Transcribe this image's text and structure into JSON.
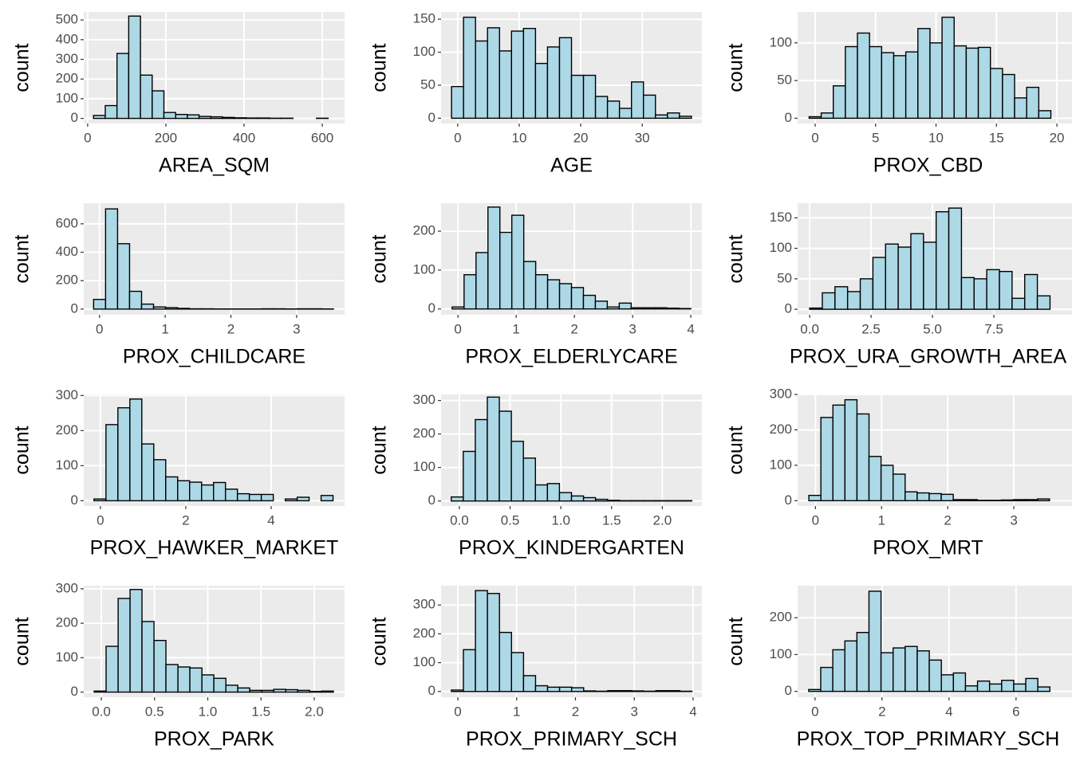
{
  "chart_data": [
    {
      "type": "histogram",
      "xlabel": "AREA_SQM",
      "ylabel": "count",
      "color": "#add8e6",
      "edge_color": "#000000",
      "grid": true,
      "bins": [
        15,
        45,
        75,
        105,
        135,
        165,
        195,
        225,
        255,
        285,
        315,
        345,
        375,
        405,
        435,
        465,
        495,
        525,
        555,
        585,
        615
      ],
      "counts": [
        15,
        65,
        330,
        520,
        220,
        140,
        30,
        20,
        18,
        10,
        8,
        5,
        3,
        2,
        2,
        1,
        1,
        0,
        0,
        1
      ],
      "xlim": [
        -10,
        657
      ],
      "ylim": [
        -26,
        541
      ],
      "xticks": [
        0,
        200,
        400,
        600
      ],
      "yticks": [
        0,
        100,
        200,
        300,
        400,
        500
      ]
    },
    {
      "type": "histogram",
      "xlabel": "AGE",
      "ylabel": "count",
      "color": "#add8e6",
      "edge_color": "#000000",
      "grid": true,
      "bins": [
        -1,
        0.95,
        2.9,
        4.85,
        6.8,
        8.75,
        10.7,
        12.65,
        14.6,
        16.55,
        18.5,
        20.45,
        22.4,
        24.35,
        26.3,
        28.25,
        30.2,
        32.15,
        34.1,
        36.05,
        38
      ],
      "counts": [
        48,
        153,
        117,
        137,
        102,
        132,
        136,
        83,
        108,
        122,
        65,
        65,
        33,
        26,
        15,
        55,
        35,
        5,
        8,
        3
      ],
      "xlim": [
        -2.7,
        39.7
      ],
      "ylim": [
        -8,
        161
      ],
      "xticks": [
        0,
        10,
        20,
        30
      ],
      "yticks": [
        0,
        50,
        100,
        150
      ]
    },
    {
      "type": "histogram",
      "xlabel": "PROX_CBD",
      "ylabel": "count",
      "color": "#add8e6",
      "edge_color": "#000000",
      "grid": true,
      "bins": [
        -0.5,
        0.5,
        1.5,
        2.5,
        3.5,
        4.5,
        5.5,
        6.5,
        7.5,
        8.5,
        9.5,
        10.5,
        11.5,
        12.5,
        13.5,
        14.5,
        15.5,
        16.5,
        17.5,
        18.5,
        19.5
      ],
      "counts": [
        2,
        7,
        43,
        95,
        113,
        95,
        87,
        83,
        88,
        119,
        100,
        134,
        96,
        93,
        94,
        66,
        58,
        27,
        41,
        10
      ],
      "xlim": [
        -1.45,
        21.25
      ],
      "ylim": [
        -7,
        141
      ],
      "xticks": [
        0,
        5,
        10,
        15,
        20
      ],
      "yticks": [
        0,
        50,
        100
      ]
    },
    {
      "type": "histogram",
      "xlabel": "PROX_CHILDCARE",
      "ylabel": "count",
      "color": "#add8e6",
      "edge_color": "#000000",
      "grid": true,
      "bins": [
        -0.09,
        0.0925,
        0.275,
        0.4575,
        0.64,
        0.8225,
        1.005,
        1.1875,
        1.37,
        1.5525,
        1.735,
        1.9175,
        2.1,
        2.2825,
        2.465,
        2.6475,
        2.83,
        3.0125,
        3.195,
        3.3775,
        3.56
      ],
      "counts": [
        68,
        705,
        460,
        125,
        35,
        15,
        10,
        5,
        2,
        2,
        1,
        1,
        1,
        1,
        2,
        2,
        1,
        2,
        2,
        1
      ],
      "xlim": [
        -0.24,
        3.73
      ],
      "ylim": [
        -40,
        745
      ],
      "xticks": [
        0,
        1,
        2,
        3
      ],
      "yticks": [
        0,
        200,
        400,
        600
      ]
    },
    {
      "type": "histogram",
      "xlabel": "PROX_ELDERLYCARE",
      "ylabel": "count",
      "color": "#add8e6",
      "edge_color": "#000000",
      "grid": true,
      "bins": [
        -0.1,
        0.105,
        0.31,
        0.515,
        0.72,
        0.925,
        1.13,
        1.335,
        1.54,
        1.745,
        1.95,
        2.155,
        2.36,
        2.565,
        2.77,
        2.975,
        3.18,
        3.385,
        3.59,
        3.795,
        4.0
      ],
      "counts": [
        5,
        88,
        145,
        262,
        197,
        241,
        122,
        88,
        75,
        65,
        55,
        35,
        20,
        5,
        15,
        3,
        3,
        3,
        2,
        1
      ],
      "xlim": [
        -0.29,
        4.19
      ],
      "ylim": [
        -15,
        272
      ],
      "xticks": [
        0,
        1,
        2,
        3,
        4
      ],
      "yticks": [
        0,
        100,
        200
      ]
    },
    {
      "type": "histogram",
      "xlabel": "PROX_URA_GROWTH_AREA",
      "ylabel": "count",
      "color": "#add8e6",
      "edge_color": "#000000",
      "grid": true,
      "bins": [
        0,
        0.515,
        1.03,
        1.545,
        2.06,
        2.575,
        3.09,
        3.605,
        4.12,
        4.635,
        5.15,
        5.665,
        6.18,
        6.695,
        7.21,
        7.725,
        8.24,
        8.755,
        9.27,
        9.785
      ],
      "counts": [
        2,
        27,
        37,
        29,
        50,
        85,
        107,
        102,
        124,
        110,
        160,
        166,
        52,
        50,
        65,
        62,
        18,
        57,
        22
      ],
      "xlim": [
        -0.49,
        10.68
      ],
      "ylim": [
        -9,
        174
      ],
      "xticks": [
        {
          "value": 0,
          "label": "0.0"
        },
        {
          "value": 2.5,
          "label": "2.5"
        },
        {
          "value": 5,
          "label": "5.0"
        },
        {
          "value": 7.5,
          "label": "7.5"
        }
      ],
      "yticks": [
        0,
        50,
        100,
        150
      ]
    },
    {
      "type": "histogram",
      "xlabel": "PROX_HAWKER_MARKET",
      "ylabel": "count",
      "color": "#add8e6",
      "edge_color": "#000000",
      "grid": true,
      "bins": [
        -0.15,
        0.13,
        0.41,
        0.69,
        0.97,
        1.25,
        1.53,
        1.81,
        2.09,
        2.37,
        2.65,
        2.93,
        3.21,
        3.49,
        3.77,
        4.05,
        4.33,
        4.61,
        4.89,
        5.17,
        5.45
      ],
      "counts": [
        5,
        217,
        265,
        290,
        162,
        117,
        68,
        57,
        53,
        45,
        52,
        33,
        20,
        18,
        18,
        0,
        5,
        10,
        0,
        15
      ],
      "xlim": [
        -0.39,
        5.72
      ],
      "ylim": [
        -15,
        303
      ],
      "xticks": [
        0,
        2,
        4
      ],
      "yticks": [
        0,
        100,
        200,
        300
      ]
    },
    {
      "type": "histogram",
      "xlabel": "PROX_KINDERGARTEN",
      "ylabel": "count",
      "color": "#add8e6",
      "edge_color": "#000000",
      "grid": true,
      "bins": [
        -0.08,
        0.0385,
        0.157,
        0.2755,
        0.394,
        0.5125,
        0.631,
        0.7495,
        0.868,
        0.9865,
        1.105,
        1.2235,
        1.342,
        1.4605,
        1.579,
        1.6975,
        1.816,
        1.9345,
        2.053,
        2.1715,
        2.29
      ],
      "counts": [
        12,
        148,
        243,
        310,
        268,
        178,
        128,
        48,
        52,
        25,
        15,
        10,
        5,
        2,
        1,
        1,
        1,
        1,
        1,
        1
      ],
      "xlim": [
        -0.18,
        2.39
      ],
      "ylim": [
        -15,
        318
      ],
      "xticks": [
        {
          "value": 0,
          "label": "0.0"
        },
        {
          "value": 0.5,
          "label": "0.5"
        },
        {
          "value": 1,
          "label": "1.0"
        },
        {
          "value": 1.5,
          "label": "1.5"
        },
        {
          "value": 2,
          "label": "2.0"
        }
      ],
      "yticks": [
        0,
        100,
        200,
        300
      ]
    },
    {
      "type": "histogram",
      "xlabel": "PROX_MRT",
      "ylabel": "count",
      "color": "#add8e6",
      "edge_color": "#000000",
      "grid": true,
      "bins": [
        -0.1,
        0.082,
        0.264,
        0.446,
        0.628,
        0.81,
        0.992,
        1.174,
        1.356,
        1.538,
        1.72,
        1.902,
        2.084,
        2.266,
        2.448,
        2.63,
        2.812,
        2.994,
        3.176,
        3.358,
        3.54
      ],
      "counts": [
        15,
        235,
        270,
        285,
        245,
        125,
        100,
        75,
        25,
        22,
        20,
        18,
        3,
        3,
        1,
        1,
        2,
        3,
        3,
        5
      ],
      "xlim": [
        -0.27,
        3.88
      ],
      "ylim": [
        -15,
        300
      ],
      "xticks": [
        0,
        1,
        2,
        3
      ],
      "yticks": [
        0,
        100,
        200,
        300
      ]
    },
    {
      "type": "histogram",
      "xlabel": "PROX_PARK",
      "ylabel": "count",
      "color": "#add8e6",
      "edge_color": "#000000",
      "grid": true,
      "bins": [
        -0.067,
        0.045,
        0.158,
        0.27,
        0.382,
        0.495,
        0.607,
        0.72,
        0.832,
        0.945,
        1.057,
        1.17,
        1.282,
        1.394,
        1.507,
        1.62,
        1.732,
        1.844,
        1.957,
        2.07,
        2.18
      ],
      "counts": [
        3,
        133,
        272,
        298,
        205,
        150,
        80,
        73,
        70,
        50,
        40,
        20,
        12,
        5,
        5,
        8,
        7,
        5,
        2,
        3
      ],
      "xlim": [
        -0.165,
        2.285
      ],
      "ylim": [
        -15,
        309
      ],
      "xticks": [
        {
          "value": 0,
          "label": "0.0"
        },
        {
          "value": 0.5,
          "label": "0.5"
        },
        {
          "value": 1,
          "label": "1.0"
        },
        {
          "value": 1.5,
          "label": "1.5"
        },
        {
          "value": 2,
          "label": "2.0"
        }
      ],
      "yticks": [
        0,
        100,
        200,
        300
      ]
    },
    {
      "type": "histogram",
      "xlabel": "PROX_PRIMARY_SCH",
      "ylabel": "count",
      "color": "#add8e6",
      "edge_color": "#000000",
      "grid": true,
      "bins": [
        -0.11,
        0.0945,
        0.299,
        0.5035,
        0.708,
        0.9125,
        1.117,
        1.3215,
        1.526,
        1.7305,
        1.935,
        2.1395,
        2.344,
        2.5485,
        2.753,
        2.9575,
        3.162,
        3.3665,
        3.571,
        3.7755,
        3.98
      ],
      "counts": [
        5,
        145,
        350,
        340,
        205,
        135,
        55,
        20,
        15,
        15,
        13,
        2,
        1,
        3,
        3,
        2,
        1,
        3,
        3,
        1
      ],
      "xlim": [
        -0.285,
        4.15
      ],
      "ylim": [
        -20,
        367
      ],
      "xticks": [
        0,
        1,
        2,
        3,
        4
      ],
      "yticks": [
        0,
        100,
        200,
        300
      ]
    },
    {
      "type": "histogram",
      "xlabel": "PROX_TOP_PRIMARY_SCH",
      "ylabel": "count",
      "color": "#add8e6",
      "edge_color": "#000000",
      "grid": true,
      "bins": [
        -0.19,
        0.17,
        0.53,
        0.89,
        1.25,
        1.61,
        1.97,
        2.33,
        2.69,
        3.05,
        3.41,
        3.77,
        4.13,
        4.49,
        4.85,
        5.21,
        5.57,
        5.93,
        6.29,
        6.65,
        7.01
      ],
      "counts": [
        5,
        65,
        113,
        137,
        160,
        272,
        105,
        118,
        122,
        110,
        85,
        45,
        50,
        15,
        28,
        20,
        30,
        20,
        35,
        12
      ],
      "xlim": [
        -0.52,
        7.67
      ],
      "ylim": [
        -16,
        287
      ],
      "xticks": [
        0,
        2,
        4,
        6
      ],
      "yticks": [
        0,
        100,
        200
      ]
    }
  ]
}
